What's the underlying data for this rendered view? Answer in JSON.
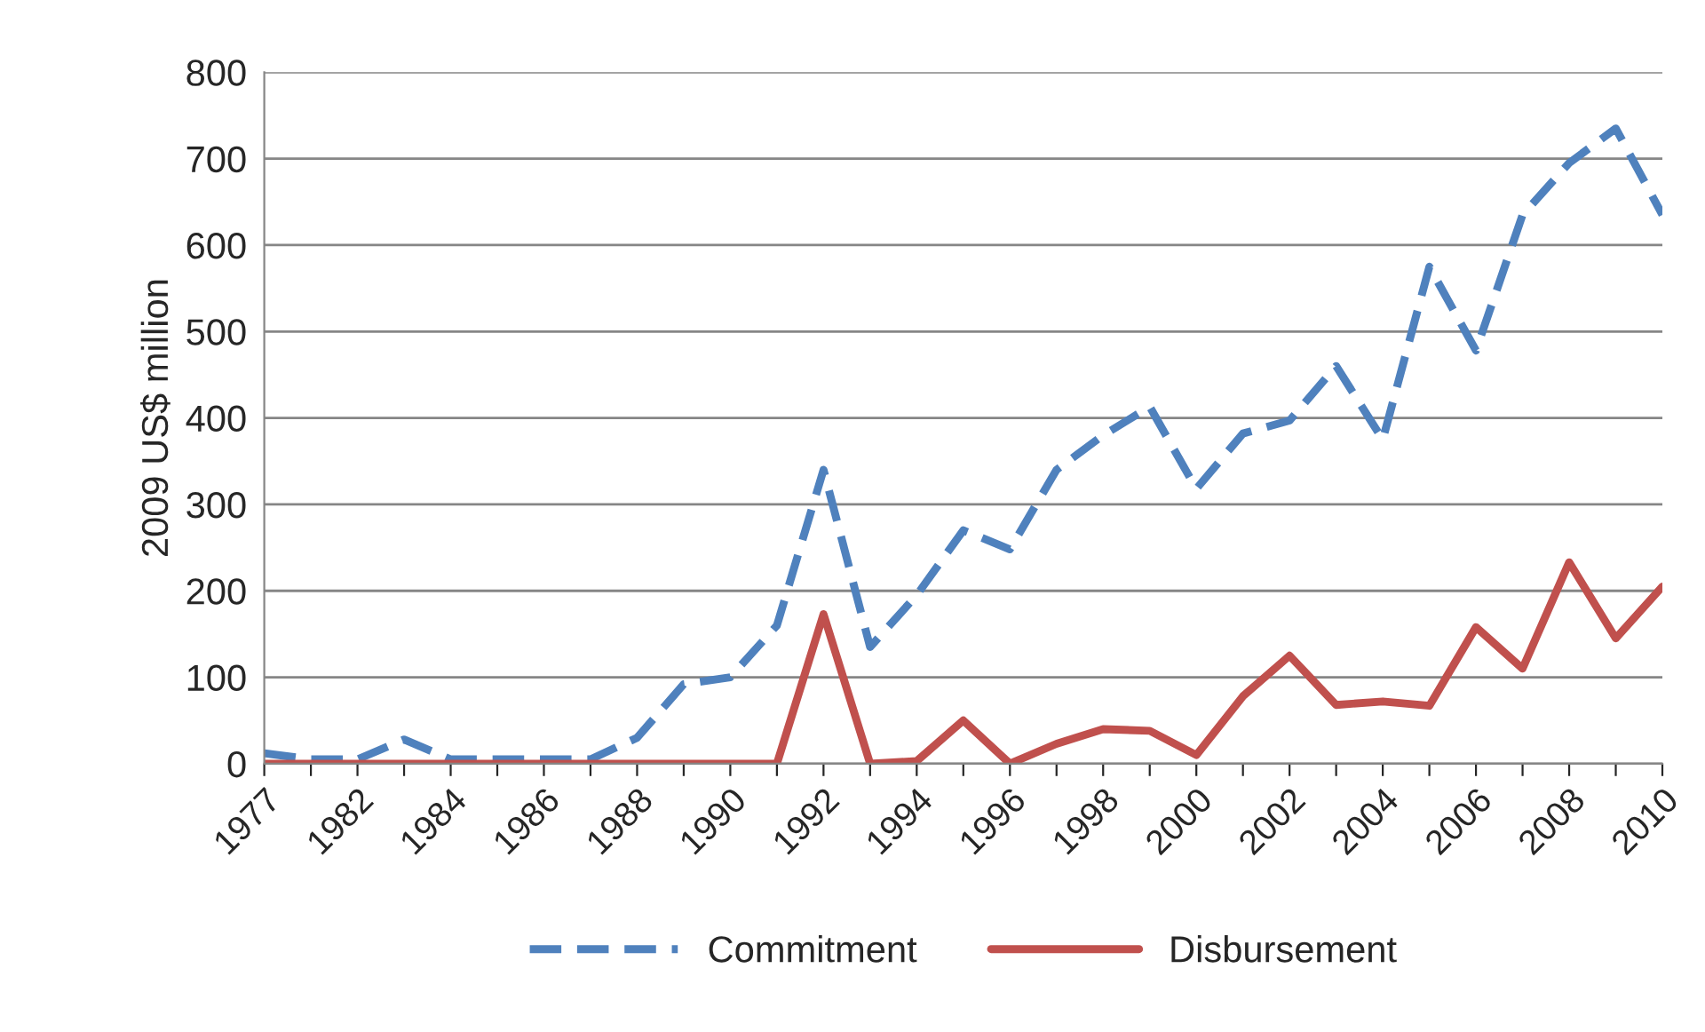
{
  "chart_data": {
    "type": "line",
    "ylabel": "2009 US$ million",
    "categories": [
      "1977",
      null,
      "1982",
      null,
      "1984",
      null,
      "1986",
      null,
      "1988",
      null,
      "1990",
      null,
      "1992",
      null,
      "1994",
      null,
      "1996",
      null,
      "1998",
      null,
      "2000",
      null,
      "2002",
      null,
      "2004",
      null,
      "2006",
      null,
      "2008",
      null,
      "2010"
    ],
    "series": [
      {
        "name": "Commitment",
        "color": "#4f81bd",
        "line_style": "dashed",
        "values": [
          12,
          5,
          5,
          28,
          5,
          5,
          5,
          5,
          30,
          92,
          100,
          160,
          340,
          135,
          195,
          270,
          248,
          340,
          380,
          413,
          318,
          382,
          397,
          460,
          375,
          575,
          478,
          635,
          695,
          735,
          635
        ]
      },
      {
        "name": "Disbursement",
        "color": "#c0504d",
        "line_style": "solid",
        "values": [
          0,
          0,
          0,
          0,
          0,
          0,
          0,
          0,
          0,
          0,
          0,
          0,
          173,
          0,
          3,
          50,
          0,
          23,
          40,
          38,
          10,
          78,
          125,
          68,
          72,
          67,
          158,
          110,
          233,
          145,
          205
        ]
      }
    ],
    "ylim": [
      0,
      800
    ],
    "yticks": [
      0,
      100,
      200,
      300,
      400,
      500,
      600,
      700,
      800
    ],
    "grid": "y",
    "legend": "bottom",
    "marker": "none"
  }
}
